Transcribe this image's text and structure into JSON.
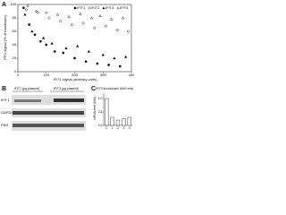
{
  "chart_data": [
    {
      "type": "scatter",
      "panel": "A",
      "xlabel": "IFIT1 signal (arbitrary units)",
      "ylabel": "PFU signal (% of maximum)",
      "xlim": [
        0,
        400
      ],
      "ylim": [
        0,
        100
      ],
      "xticks": [
        0,
        100,
        200,
        300,
        400
      ],
      "yticks": [
        0,
        20,
        40,
        60,
        80,
        100
      ],
      "grid": false,
      "legend": "top-right",
      "series": [
        {
          "name": "IFIT1",
          "color": "#111111",
          "marker": "circle-filled",
          "x": [
            20,
            40,
            60,
            80,
            100,
            130,
            160,
            200,
            240,
            280,
            320,
            360
          ],
          "values": [
            95,
            70,
            55,
            45,
            40,
            30,
            28,
            20,
            15,
            12,
            10,
            8
          ]
        },
        {
          "name": "IFIT2",
          "color": "#111111",
          "marker": "circle-open",
          "x": [
            30,
            70,
            110,
            150,
            190,
            230,
            270,
            310,
            350,
            390
          ],
          "values": [
            92,
            88,
            80,
            75,
            70,
            72,
            65,
            68,
            62,
            60
          ]
        },
        {
          "name": "IFIT3",
          "color": "#111111",
          "marker": "triangle-filled",
          "x": [
            25,
            50,
            90,
            120,
            170,
            210,
            250,
            300,
            340,
            380
          ],
          "values": [
            85,
            60,
            50,
            42,
            35,
            38,
            30,
            25,
            20,
            22
          ]
        },
        {
          "name": "IFIT5",
          "color": "#111111",
          "marker": "triangle-open",
          "x": [
            35,
            65,
            100,
            140,
            180,
            220,
            260,
            290,
            330,
            370
          ],
          "values": [
            98,
            90,
            88,
            85,
            82,
            86,
            80,
            83,
            78,
            80
          ]
        }
      ]
    },
    {
      "type": "bar",
      "panel": "C",
      "title": "IFIT3 knockdown/ A549 cells",
      "ylabel": "mRNA level (fold)",
      "color": "#ffffff",
      "categories": [
        "C",
        "1",
        "2",
        "3",
        "4"
      ],
      "values": [
        1.0,
        0.3,
        0.2,
        0.25,
        0.3
      ],
      "ylim": [
        0,
        1.2
      ],
      "yticks": [
        {
          "value": 0,
          "label": "0.0"
        },
        {
          "value": 0.5,
          "label": "0.5"
        },
        {
          "value": 1,
          "label": "1.0"
        }
      ]
    }
  ],
  "blot": {
    "panel": "B",
    "groups": [
      "IFIT1 (µg plasmid)",
      "IFIT3 (µg plasmid)"
    ],
    "rows": [
      "IFIT1",
      "GAPDH",
      "PKR"
    ]
  }
}
